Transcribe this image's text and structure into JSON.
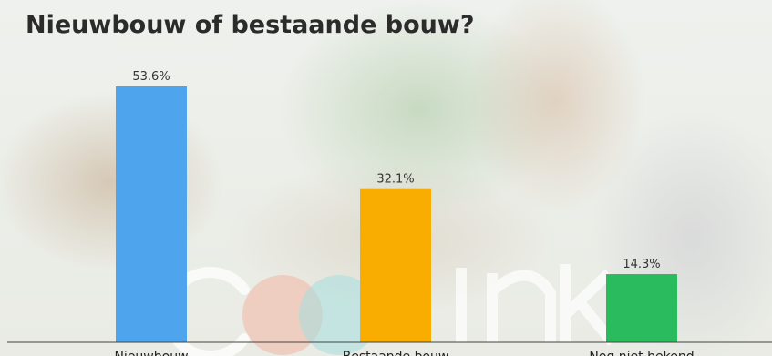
{
  "title": "Nieuwbouw of bestaande bouw?",
  "watermark": {
    "text": "coolink",
    "colors": [
      "#f0b8a8",
      "#a8dcdc",
      "#ffffff"
    ]
  },
  "chart_data": {
    "type": "bar",
    "title": "Nieuwbouw of bestaande bouw?",
    "categories": [
      "Nieuwbouw",
      "Bestaande bouw",
      "Nog niet bekend"
    ],
    "values": [
      53.6,
      32.1,
      14.3
    ],
    "data_labels": [
      "53.6%",
      "32.1%",
      "14.3%"
    ],
    "colors": [
      "#4ea5ee",
      "#f9ad00",
      "#2abb5f"
    ],
    "xlabel": "",
    "ylabel": "",
    "ylim": [
      0,
      60
    ],
    "grid": false,
    "legend": "none"
  }
}
